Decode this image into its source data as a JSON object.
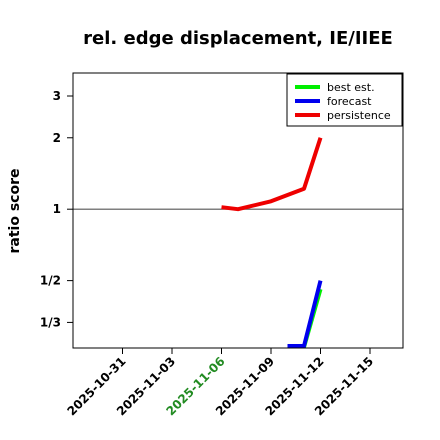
{
  "chart_data": {
    "type": "line",
    "title": "rel. edge displacement, IE/IIEE",
    "xlabel": "",
    "ylabel": "ratio score",
    "y_scale": "log",
    "xlim": [
      "2025-10-28",
      "2025-11-17"
    ],
    "ylim": [
      0.26,
      3.75
    ],
    "reference_line": 1,
    "x_ticks": [
      {
        "label": "2025-10-31",
        "date": "2025-10-31",
        "color": "#000000"
      },
      {
        "label": "2025-11-03",
        "date": "2025-11-03",
        "color": "#000000"
      },
      {
        "label": "2025-11-06",
        "date": "2025-11-06",
        "color": "#228b22"
      },
      {
        "label": "2025-11-09",
        "date": "2025-11-09",
        "color": "#000000"
      },
      {
        "label": "2025-11-12",
        "date": "2025-11-12",
        "color": "#000000"
      },
      {
        "label": "2025-11-15",
        "date": "2025-11-15",
        "color": "#000000"
      }
    ],
    "y_ticks": [
      {
        "label": "3",
        "value": 3
      },
      {
        "label": "2",
        "value": 2
      },
      {
        "label": "1",
        "value": 1
      },
      {
        "label": "1/2",
        "value": 0.5
      },
      {
        "label": "1/3",
        "value": 0.3333
      }
    ],
    "legend": {
      "position": "top-right",
      "entries": [
        {
          "name": "best est.",
          "color": "#00ee00"
        },
        {
          "name": "forecast",
          "color": "#0000ee"
        },
        {
          "name": "persistence",
          "color": "#ee0000"
        }
      ]
    },
    "series": [
      {
        "name": "persistence",
        "color": "#ee0000",
        "points": [
          {
            "x": "2025-11-06",
            "y": 1.02
          },
          {
            "x": "2025-11-07",
            "y": 1.0
          },
          {
            "x": "2025-11-09",
            "y": 1.08
          },
          {
            "x": "2025-11-11",
            "y": 1.22
          },
          {
            "x": "2025-11-12",
            "y": 2.0
          }
        ]
      },
      {
        "name": "best est.",
        "color": "#00ee00",
        "points": [
          {
            "x": "2025-11-11",
            "y": 0.262
          },
          {
            "x": "2025-11-12",
            "y": 0.46
          }
        ]
      },
      {
        "name": "forecast",
        "color": "#0000ee",
        "points": [
          {
            "x": "2025-11-10",
            "y": 0.265
          },
          {
            "x": "2025-11-11",
            "y": 0.265
          },
          {
            "x": "2025-11-12",
            "y": 0.5
          }
        ]
      }
    ]
  }
}
